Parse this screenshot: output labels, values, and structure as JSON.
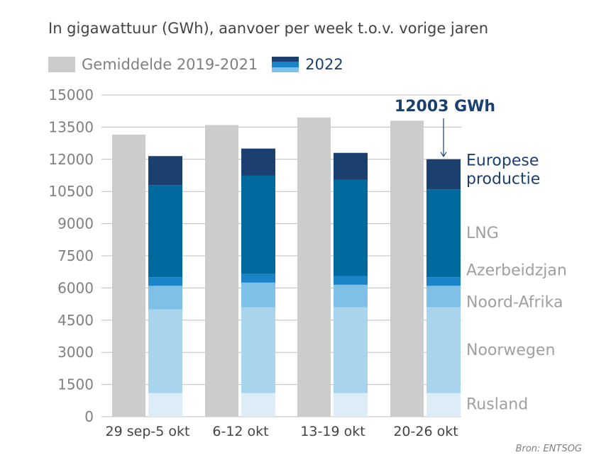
{
  "subtitle": "In gigawattuur (GWh), aanvoer per week t.o.v. vorige jaren",
  "legend": {
    "avg_label": "Gemiddelde 2019-2021",
    "year_label": "2022"
  },
  "source": "Bron: ENTSOG",
  "annotation": "12003 GWh",
  "colors": {
    "average": "#cccccc",
    "Rusland": "#dcedf7",
    "Noorwegen": "#a9d4ee",
    "Noord-Afrika": "#7fc0e6",
    "Azerbeidzjan": "#1a84c9",
    "LNG": "#00699e",
    "Europese productie": "#1b3f6e",
    "axis_text": "#808080",
    "segment_label": "#a0a0a0",
    "dark_blue_text": "#1b3f6e"
  },
  "chart_data": {
    "type": "bar",
    "ylim": [
      0,
      15000
    ],
    "yticks": [
      "0",
      "1500",
      "3000",
      "4500",
      "6000",
      "7500",
      "9000",
      "10500",
      "12000",
      "13500",
      "15000"
    ],
    "categories": [
      "29 sep-5 okt",
      "6-12 okt",
      "13-19 okt",
      "20-26 okt"
    ],
    "average": {
      "name": "Gemiddelde 2019-2021",
      "values": [
        13150,
        13600,
        13950,
        13800
      ]
    },
    "stack_2022": [
      {
        "name": "Rusland",
        "values": [
          1100,
          1100,
          1100,
          1100
        ]
      },
      {
        "name": "Noorwegen",
        "values": [
          3900,
          4000,
          4000,
          4000
        ]
      },
      {
        "name": "Noord-Afrika",
        "values": [
          1100,
          1150,
          1050,
          1000
        ]
      },
      {
        "name": "Azerbeidzjan",
        "values": [
          400,
          400,
          400,
          400
        ]
      },
      {
        "name": "LNG",
        "values": [
          4300,
          4600,
          4500,
          4100
        ]
      },
      {
        "name": "Europese productie",
        "values": [
          1350,
          1250,
          1250,
          1403
        ]
      }
    ],
    "segment_labels": [
      "Rusland",
      "Noorwegen",
      "Noord-Afrika",
      "Azerbeidzjan",
      "LNG",
      "Europese",
      "productie"
    ],
    "annotation": {
      "text": "12003 GWh",
      "category": "20-26 okt",
      "value": 12003
    }
  }
}
